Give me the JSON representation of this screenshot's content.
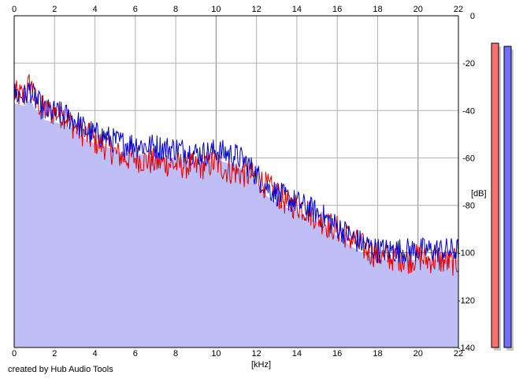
{
  "chart_data": {
    "type": "area",
    "title": "",
    "xlabel": "[kHz]",
    "ylabel": "[dB]",
    "xlim": [
      0,
      22
    ],
    "ylim": [
      -140,
      0
    ],
    "x_ticks": [
      "0",
      "2",
      "4",
      "6",
      "8",
      "10",
      "12",
      "14",
      "16",
      "18",
      "20",
      "22"
    ],
    "y_ticks": [
      "0",
      "-20",
      "-40",
      "-60",
      "-80",
      "-100",
      "-120",
      "-140"
    ],
    "grid": true,
    "series": [
      {
        "color": "#0000cc",
        "fill": "#bfbff8",
        "x": [
          0,
          0.5,
          0.8,
          1,
          1.5,
          2,
          2.5,
          3,
          3.5,
          4,
          4.5,
          5,
          5.5,
          6,
          6.5,
          7,
          7.5,
          8,
          8.5,
          9,
          9.5,
          10,
          10.5,
          11,
          11.5,
          12,
          12.5,
          13,
          13.5,
          14,
          14.5,
          15,
          15.5,
          16,
          16.5,
          17,
          17.5,
          18,
          18.5,
          19,
          19.5,
          20,
          20.5,
          21,
          21.5,
          22
        ],
        "y": [
          -33,
          -34,
          -31,
          -35,
          -40,
          -41,
          -42,
          -44,
          -48,
          -50,
          -51,
          -53,
          -54,
          -54,
          -55,
          -55,
          -56,
          -56,
          -57,
          -58,
          -58,
          -57,
          -58,
          -59,
          -62,
          -67,
          -72,
          -75,
          -77,
          -79,
          -81,
          -83,
          -86,
          -89,
          -92,
          -95,
          -97,
          -99,
          -99,
          -99,
          -99,
          -99,
          -99,
          -99,
          -99,
          -99
        ]
      },
      {
        "color": "#e00000",
        "x": [
          0,
          0.5,
          0.8,
          1,
          1.5,
          2,
          2.5,
          3,
          3.5,
          4,
          4.5,
          5,
          5.5,
          6,
          6.5,
          7,
          7.5,
          8,
          8.5,
          9,
          9.5,
          10,
          10.5,
          11,
          11.5,
          12,
          12.5,
          13,
          13.5,
          14,
          14.5,
          15,
          15.5,
          16,
          16.5,
          17,
          17.5,
          18,
          18.5,
          19,
          19.5,
          20,
          20.5,
          21,
          21.5,
          22
        ],
        "y": [
          -33,
          -34,
          -28,
          -35,
          -40,
          -41,
          -42,
          -47,
          -50,
          -53,
          -55,
          -58,
          -60,
          -60,
          -61,
          -62,
          -62,
          -63,
          -63,
          -64,
          -63,
          -62,
          -65,
          -66,
          -67,
          -68,
          -72,
          -75,
          -79,
          -80,
          -82,
          -85,
          -88,
          -90,
          -93,
          -96,
          -99,
          -101,
          -102,
          -102,
          -103,
          -102,
          -103,
          -103,
          -104,
          -104
        ]
      }
    ],
    "credit": "created by Hub Audio Tools",
    "meters": [
      {
        "color": "#ff7070",
        "level": 0.98
      },
      {
        "color": "#7070ff",
        "level": 0.97
      }
    ]
  }
}
